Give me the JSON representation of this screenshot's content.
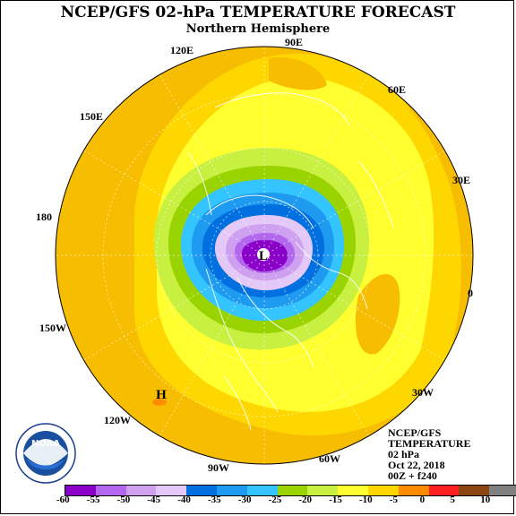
{
  "title": "NCEP/GFS 02-hPa TEMPERATURE FORECAST",
  "subtitle": "Northern Hemisphere",
  "longitude_labels": {
    "lon_90e": "90E",
    "lon_120e": "120E",
    "lon_60e": "60E",
    "lon_150e": "150E",
    "lon_30e": "30E",
    "lon_180": "180",
    "lon_0": "0",
    "lon_150w": "150W",
    "lon_30w": "30W",
    "lon_120w": "120W",
    "lon_90w": "90W",
    "lon_60w": "60W"
  },
  "markers": {
    "low": "L",
    "high": "H"
  },
  "info_block": {
    "line1": "NCEP/GFS",
    "line2": "TEMPERATURE",
    "line3": "02 hPa",
    "line4": "Oct 22, 2018",
    "line5": "00Z + f240"
  },
  "logo": {
    "text": "NOAA",
    "ring_text": "NATIONAL OCEANIC AND ATMOSPHERIC ADMINISTRATION · U.S. DEPARTMENT OF COMMERCE"
  },
  "colorbar": {
    "labels": [
      "-60",
      "-55",
      "-50",
      "-45",
      "-40",
      "-35",
      "-30",
      "-25",
      "-20",
      "-15",
      "-10",
      "-5",
      "0",
      "5",
      "10"
    ],
    "colors": [
      "#8a00c8",
      "#b366ee",
      "#cfa0f0",
      "#e4c8f8",
      "#0070e0",
      "#1e9bf0",
      "#34c4ff",
      "#9ad400",
      "#c8f040",
      "#ffff30",
      "#ffd700",
      "#ff8c00",
      "#ff2020",
      "#8b4513",
      "#808080"
    ]
  },
  "field_colors": {
    "background": "#f7bd00",
    "band_light": "#ffd700",
    "band_yellow": "#ffff30",
    "band_yellowgreen": "#c8f040",
    "band_green": "#9ad400",
    "band_cyan": "#34c4ff",
    "band_blue": "#1e9bf0",
    "band_darkblue": "#0070e0",
    "band_lav": "#e4c8f8",
    "band_lilac": "#cfa0f0",
    "band_violet": "#b366ee",
    "band_purple": "#8a00c8",
    "warm_spot": "#ff8c00"
  }
}
